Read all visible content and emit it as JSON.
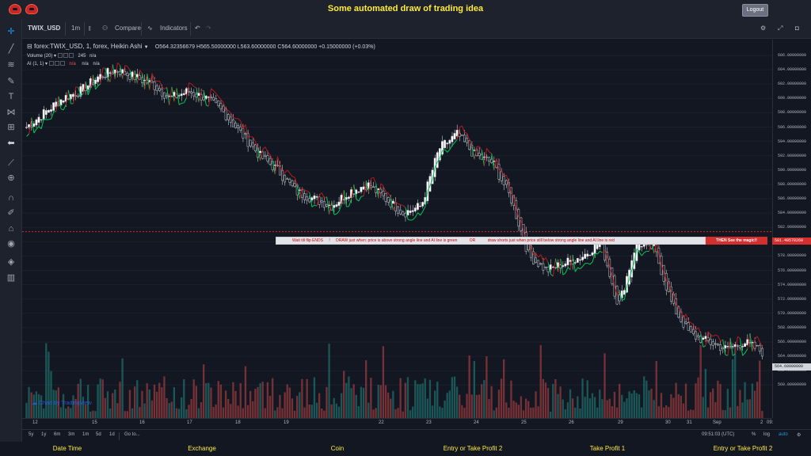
{
  "app_title": "Some automated draw of trading idea",
  "logout_label": "Logout",
  "toolbar": {
    "symbol": "TWIX_USD",
    "interval": "1m",
    "compare_label": "Compare",
    "indicators_label": "Indicators"
  },
  "legend": {
    "title": "forex:TWIX_USD, 1, forex, Heikin Ashi",
    "ohlc": "O564.32356679  H565.50000000  L563.60000000  C564.60000000  +0.15000000 (+0.03%)",
    "volume_label": "Volume (20)",
    "volume_value": "245",
    "volume_na": "n/a",
    "ai_label": "AI (1, 1)",
    "ai_value1": "n/a",
    "ai_value2": "n/a"
  },
  "banner": {
    "part1": "Wait till flip ENDS",
    "part2": "DRAW just when:  price is above strong angle line and AI line is green",
    "part3": "OR",
    "part4": "draw shorts just when price still below strong angle line and AI line is red",
    "end": "THEN See the magic!!"
  },
  "price_axis": [
    "606.00000000",
    "604.00000000",
    "602.00000000",
    "600.00000000",
    "598.00000000",
    "596.00000000",
    "594.00000000",
    "592.00000000",
    "590.00000000",
    "588.00000000",
    "586.00000000",
    "584.00000000",
    "582.00000000",
    "580.00000000",
    "578.00000000",
    "576.00000000",
    "574.00000000",
    "572.00000000",
    "570.00000000",
    "568.00000000",
    "566.00000000",
    "564.00000000",
    "562.00000000",
    "560.00000000"
  ],
  "last_price": "564.60000000",
  "line_price": "581.40578260",
  "time_axis": [
    "12",
    "15",
    "16",
    "17",
    "18",
    "19",
    "22",
    "23",
    "24",
    "25",
    "26",
    "29",
    "30",
    "31",
    "Sep",
    "2",
    "09:"
  ],
  "watermark": "Chart by TradingView",
  "bottombar": {
    "ranges": [
      "5y",
      "1y",
      "6m",
      "3m",
      "1m",
      "5d",
      "1d"
    ],
    "goto": "Go to...",
    "clock": "09:51:03 (UTC)",
    "percent": "%",
    "log": "log",
    "auto": "auto"
  },
  "footer": [
    "Date Time",
    "Exchange",
    "Coin",
    "Entry or Take Profit 2",
    "Take Profit 1",
    "Entry or Take Profit 2"
  ],
  "colors": {
    "up": "#26a69a",
    "down": "#ef5350",
    "accent": "#ffeb3b",
    "ai_green": "#00c853",
    "ai_red": "#b71c1c"
  },
  "chart_data": {
    "type": "candlestick",
    "title": "forex:TWIX_USD, 1, forex, Heikin Ashi",
    "ylim": [
      559,
      607
    ],
    "x_labels": [
      "12",
      "15",
      "16",
      "17",
      "18",
      "19",
      "22",
      "23",
      "24",
      "25",
      "26",
      "29",
      "30",
      "31",
      "Sep",
      "2"
    ],
    "close_path": [
      596,
      598,
      600,
      601,
      603,
      604,
      603,
      602,
      600,
      601,
      600,
      598,
      595,
      592,
      590,
      587,
      586,
      585,
      587,
      588,
      586,
      584,
      585,
      593,
      595,
      592,
      591,
      586,
      578,
      576,
      577,
      578,
      580,
      571,
      580,
      579,
      571,
      567,
      566,
      565,
      566,
      564.6
    ],
    "horizontal_line": 581.4058
  }
}
